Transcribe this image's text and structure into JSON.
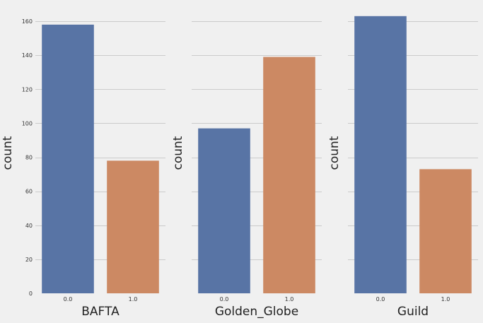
{
  "chart_data": [
    {
      "type": "bar",
      "categories": [
        "0.0",
        "1.0"
      ],
      "values": [
        158,
        78
      ],
      "xlabel": "BAFTA",
      "ylabel": "count",
      "ylim": [
        0,
        165
      ],
      "yticks": [
        0,
        20,
        40,
        60,
        80,
        100,
        120,
        140,
        160
      ],
      "show_ytick_labels": true,
      "grid": true
    },
    {
      "type": "bar",
      "categories": [
        "0.0",
        "1.0"
      ],
      "values": [
        97,
        139
      ],
      "xlabel": "Golden_Globe",
      "ylabel": "count",
      "ylim": [
        0,
        165
      ],
      "yticks": [
        0,
        20,
        40,
        60,
        80,
        100,
        120,
        140,
        160
      ],
      "show_ytick_labels": false,
      "grid": true
    },
    {
      "type": "bar",
      "categories": [
        "0.0",
        "1.0"
      ],
      "values": [
        163,
        73
      ],
      "xlabel": "Guild",
      "ylabel": "count",
      "ylim": [
        0,
        165
      ],
      "yticks": [
        0,
        20,
        40,
        60,
        80,
        100,
        120,
        140,
        160
      ],
      "show_ytick_labels": false,
      "grid": true
    }
  ],
  "colors": {
    "background": "#f0f0f0",
    "bar_0": "#5874a5",
    "bar_1": "#cc8963",
    "grid": "#cbcbcb"
  }
}
